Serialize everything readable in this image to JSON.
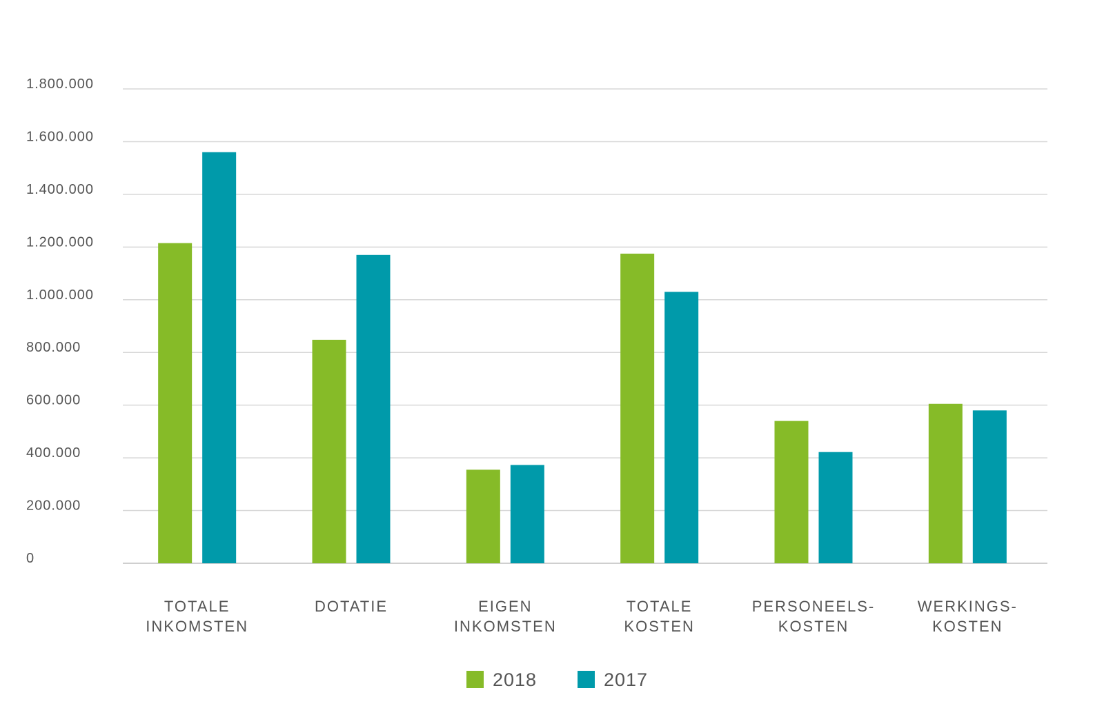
{
  "chart_data": {
    "type": "bar",
    "categories": [
      [
        "TOTALE",
        "INKOMSTEN"
      ],
      [
        "DOTATIE"
      ],
      [
        "EIGEN",
        "INKOMSTEN"
      ],
      [
        "TOTALE",
        "KOSTEN"
      ],
      [
        "PERSONEELS-",
        "KOSTEN"
      ],
      [
        "WERKINGS-",
        "KOSTEN"
      ]
    ],
    "series": [
      {
        "name": "2018",
        "color": "#86bb28",
        "values": [
          1215000,
          848000,
          355000,
          1175000,
          540000,
          605000
        ]
      },
      {
        "name": "2017",
        "color": "#009aaa",
        "values": [
          1560000,
          1170000,
          373000,
          1030000,
          422000,
          580000
        ]
      }
    ],
    "ylim": [
      0,
      1800000
    ],
    "yticks": [
      0,
      200000,
      400000,
      600000,
      800000,
      1000000,
      1200000,
      1400000,
      1600000,
      1800000
    ],
    "ytick_labels": [
      "0",
      "200.000",
      "400.000",
      "600.000",
      "800.000",
      "1.000.000",
      "1.200.000",
      "1.400.000",
      "1.600.000",
      "1.800.000"
    ],
    "grid": true,
    "legend_position": "bottom-center",
    "title": "",
    "xlabel": "",
    "ylabel": ""
  }
}
